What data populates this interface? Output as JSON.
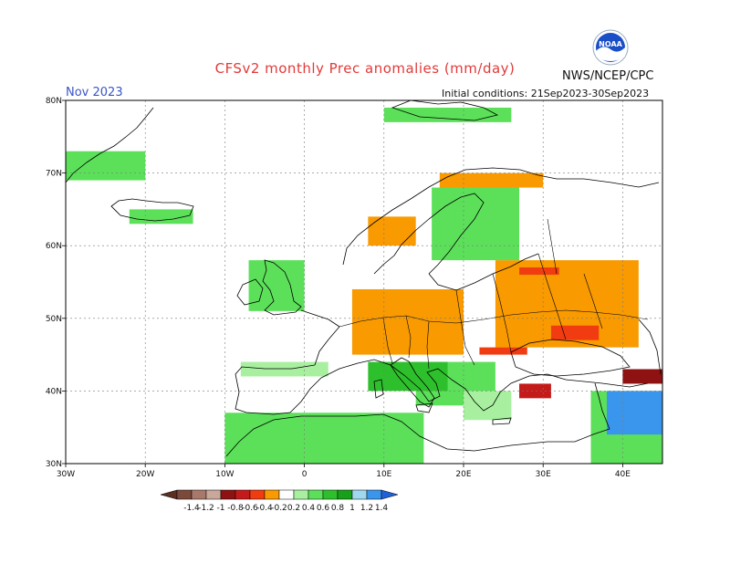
{
  "header": {
    "title": "CFSv2 monthly Prec anomalies (mm/day)",
    "period": "Nov 2023",
    "initial_conditions": "Initial conditions: 21Sep2023-30Sep2023",
    "agency": "NWS/NCEP/CPC",
    "logo_text": "NOAA"
  },
  "map": {
    "lon_range": [
      -30,
      45
    ],
    "lat_range": [
      30,
      80
    ],
    "lon_ticks": [
      {
        "value": -30,
        "label": "30W"
      },
      {
        "value": -20,
        "label": "20W"
      },
      {
        "value": -10,
        "label": "10W"
      },
      {
        "value": 0,
        "label": "0"
      },
      {
        "value": 10,
        "label": "10E"
      },
      {
        "value": 20,
        "label": "20E"
      },
      {
        "value": 30,
        "label": "30E"
      },
      {
        "value": 40,
        "label": "40E"
      }
    ],
    "lat_ticks": [
      {
        "value": 30,
        "label": "30N"
      },
      {
        "value": 40,
        "label": "40N"
      },
      {
        "value": 50,
        "label": "50N"
      },
      {
        "value": 60,
        "label": "60N"
      },
      {
        "value": 70,
        "label": "70N"
      },
      {
        "value": 80,
        "label": "80N"
      }
    ],
    "grid": true
  },
  "colorbar": {
    "labels": [
      "-1.4",
      "-1.2",
      "-1",
      "-0.8",
      "-0.6",
      "-0.4",
      "-0.2",
      "0.2",
      "0.4",
      "0.6",
      "0.8",
      "1",
      "1.2",
      "1.4"
    ],
    "colors": [
      "#7b4a3a",
      "#a8796a",
      "#c9a79a",
      "#8e1212",
      "#c41a1a",
      "#f03c10",
      "#f89a00",
      "#ffffff",
      "#a8f0a0",
      "#5ce05a",
      "#2ec02c",
      "#18a018",
      "#a0d8f0",
      "#3a96ec"
    ],
    "end_low": "#5a3020",
    "end_high": "#2060d8"
  },
  "anomaly_patches": [
    {
      "color": "#f89a00",
      "name": "orange-central-europe",
      "lon": [
        6,
        20
      ],
      "lat": [
        45,
        54
      ]
    },
    {
      "color": "#f89a00",
      "name": "orange-eastern-europe",
      "lon": [
        24,
        42
      ],
      "lat": [
        46,
        58
      ]
    },
    {
      "color": "#f89a00",
      "name": "orange-scandinavia-north",
      "lon": [
        17,
        30
      ],
      "lat": [
        68,
        70
      ]
    },
    {
      "color": "#f89a00",
      "name": "orange-norway",
      "lon": [
        8,
        14
      ],
      "lat": [
        60,
        64
      ]
    },
    {
      "color": "#f03c10",
      "name": "red-ukraine",
      "lon": [
        31,
        37
      ],
      "lat": [
        47,
        49
      ]
    },
    {
      "color": "#f03c10",
      "name": "red-black-sea-north",
      "lon": [
        22,
        28
      ],
      "lat": [
        45,
        46
      ]
    },
    {
      "color": "#f03c10",
      "name": "red-russia",
      "lon": [
        27,
        32
      ],
      "lat": [
        56,
        57
      ]
    },
    {
      "color": "#c41a1a",
      "name": "darkred-turkey-west",
      "lon": [
        27,
        31
      ],
      "lat": [
        39,
        41
      ]
    },
    {
      "color": "#8e1212",
      "name": "darkred-caucasus",
      "lon": [
        40,
        45
      ],
      "lat": [
        41,
        43
      ]
    },
    {
      "color": "#5ce05a",
      "name": "green-north-africa",
      "lon": [
        -10,
        15
      ],
      "lat": [
        30,
        37
      ]
    },
    {
      "color": "#5ce05a",
      "name": "green-britain",
      "lon": [
        -7,
        0
      ],
      "lat": [
        51,
        58
      ]
    },
    {
      "color": "#5ce05a",
      "name": "green-scandinavia",
      "lon": [
        16,
        27
      ],
      "lat": [
        58,
        68
      ]
    },
    {
      "color": "#5ce05a",
      "name": "green-balkans",
      "lon": [
        14,
        24
      ],
      "lat": [
        38,
        44
      ]
    },
    {
      "color": "#5ce05a",
      "name": "green-iceland",
      "lon": [
        -22,
        -14
      ],
      "lat": [
        63,
        65
      ]
    },
    {
      "color": "#5ce05a",
      "name": "green-greenland",
      "lon": [
        -30,
        -20
      ],
      "lat": [
        69,
        73
      ]
    },
    {
      "color": "#5ce05a",
      "name": "green-svalbard",
      "lon": [
        10,
        26
      ],
      "lat": [
        77,
        79
      ]
    },
    {
      "color": "#5ce05a",
      "name": "green-middle-east",
      "lon": [
        36,
        45
      ],
      "lat": [
        30,
        40
      ]
    },
    {
      "color": "#3a96ec",
      "name": "blue-middle-east",
      "lon": [
        38,
        45
      ],
      "lat": [
        34,
        40
      ]
    },
    {
      "color": "#2ec02c",
      "name": "darkgreen-italy",
      "lon": [
        8,
        18
      ],
      "lat": [
        40,
        44
      ]
    },
    {
      "color": "#a8f0a0",
      "name": "lightgreen-iberia-north",
      "lon": [
        -8,
        3
      ],
      "lat": [
        42,
        44
      ]
    },
    {
      "color": "#a8f0a0",
      "name": "lightgreen-greece",
      "lon": [
        20,
        26
      ],
      "lat": [
        36,
        40
      ]
    }
  ]
}
